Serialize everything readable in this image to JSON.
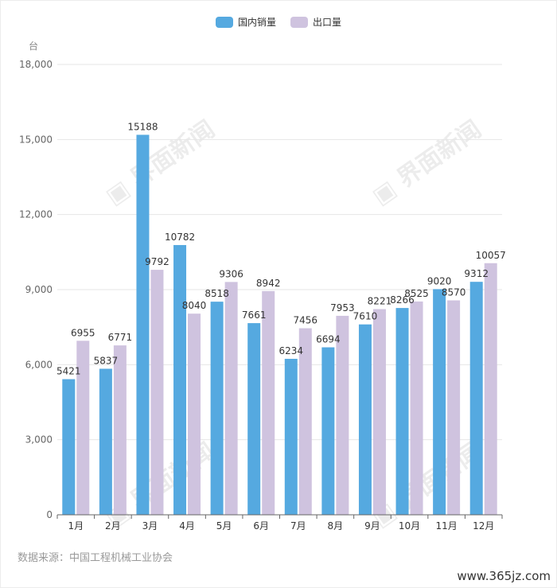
{
  "chart_data": {
    "type": "bar",
    "unit": "台",
    "categories": [
      "1月",
      "2月",
      "3月",
      "4月",
      "5月",
      "6月",
      "7月",
      "8月",
      "9月",
      "10月",
      "11月",
      "12月"
    ],
    "series": [
      {
        "name": "国内销量",
        "color": "#55a9e0",
        "values": [
          5421,
          5837,
          15188,
          10782,
          8518,
          7661,
          6234,
          6694,
          7610,
          8266,
          9020,
          9312
        ]
      },
      {
        "name": "出口量",
        "color": "#cfc3df",
        "values": [
          6955,
          6771,
          9792,
          8040,
          9306,
          8942,
          7456,
          7953,
          8221,
          8525,
          8570,
          10057
        ]
      }
    ],
    "ylim": [
      0,
      18000
    ],
    "yticks": [
      "0",
      "3,000",
      "6,000",
      "9,000",
      "12,000",
      "15,000",
      "18,000"
    ],
    "ytick_values": [
      0,
      3000,
      6000,
      9000,
      12000,
      15000,
      18000
    ],
    "grid": true,
    "legend_position": "top-center"
  },
  "source": "数据来源：中国工程机械工业协会",
  "watermark": "界面新闻",
  "site_watermark": "www.365jz.com"
}
